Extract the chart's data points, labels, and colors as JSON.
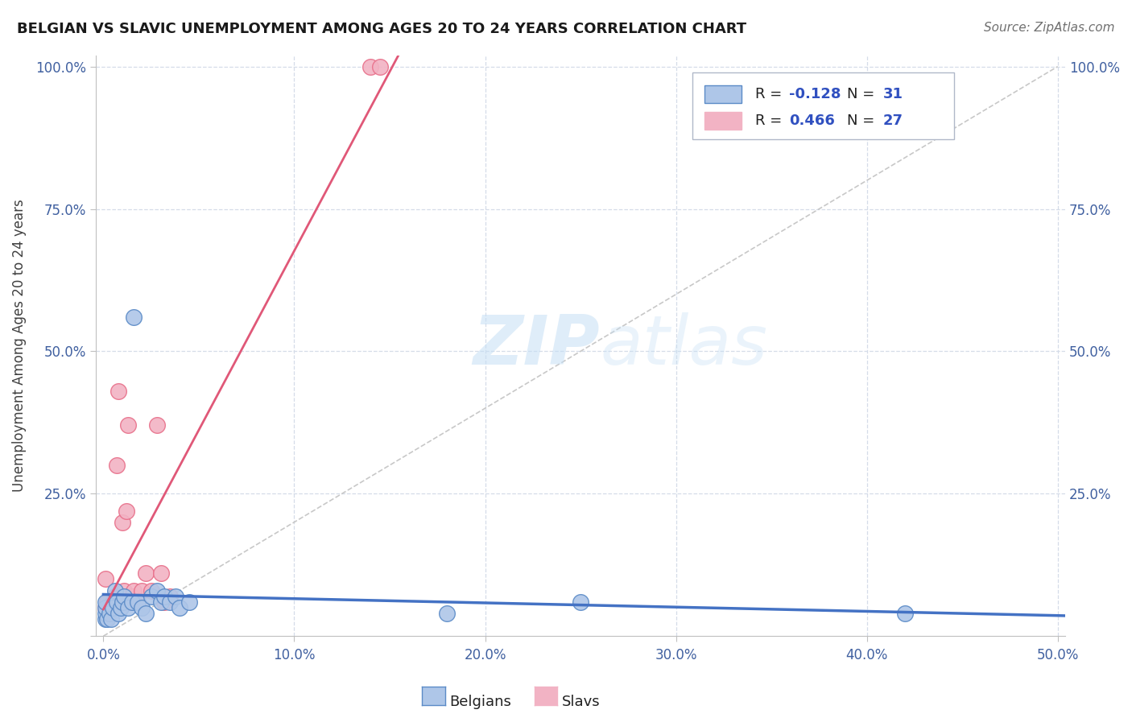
{
  "title": "BELGIAN VS SLAVIC UNEMPLOYMENT AMONG AGES 20 TO 24 YEARS CORRELATION CHART",
  "source": "Source: ZipAtlas.com",
  "ylabel": "Unemployment Among Ages 20 to 24 years",
  "xlim": [
    -0.004,
    0.504
  ],
  "ylim": [
    0.0,
    1.02
  ],
  "xticks": [
    0.0,
    0.1,
    0.2,
    0.3,
    0.4,
    0.5
  ],
  "yticks": [
    0.0,
    0.25,
    0.5,
    0.75,
    1.0
  ],
  "xticklabels": [
    "0.0%",
    "10.0%",
    "20.0%",
    "30.0%",
    "40.0%",
    "50.0%"
  ],
  "yticklabels": [
    "",
    "25.0%",
    "50.0%",
    "75.0%",
    "100.0%"
  ],
  "belgians_x": [
    0.001,
    0.001,
    0.001,
    0.001,
    0.002,
    0.003,
    0.004,
    0.005,
    0.006,
    0.007,
    0.008,
    0.009,
    0.01,
    0.011,
    0.013,
    0.015,
    0.016,
    0.018,
    0.02,
    0.022,
    0.025,
    0.028,
    0.03,
    0.032,
    0.035,
    0.038,
    0.04,
    0.045,
    0.18,
    0.25,
    0.42
  ],
  "belgians_y": [
    0.03,
    0.04,
    0.05,
    0.06,
    0.03,
    0.04,
    0.03,
    0.05,
    0.08,
    0.06,
    0.04,
    0.05,
    0.06,
    0.07,
    0.05,
    0.06,
    0.56,
    0.06,
    0.05,
    0.04,
    0.07,
    0.08,
    0.06,
    0.07,
    0.06,
    0.07,
    0.05,
    0.06,
    0.04,
    0.06,
    0.04
  ],
  "slavs_x": [
    0.001,
    0.001,
    0.002,
    0.003,
    0.004,
    0.005,
    0.006,
    0.007,
    0.008,
    0.009,
    0.01,
    0.011,
    0.012,
    0.013,
    0.014,
    0.015,
    0.016,
    0.018,
    0.02,
    0.022,
    0.025,
    0.028,
    0.03,
    0.032,
    0.035,
    0.14,
    0.145
  ],
  "slavs_y": [
    0.1,
    0.05,
    0.06,
    0.04,
    0.05,
    0.06,
    0.07,
    0.3,
    0.43,
    0.07,
    0.2,
    0.08,
    0.22,
    0.37,
    0.06,
    0.07,
    0.08,
    0.06,
    0.08,
    0.11,
    0.08,
    0.37,
    0.11,
    0.06,
    0.07,
    1.0,
    1.0
  ],
  "belgian_R": -0.128,
  "belgian_N": 31,
  "slav_R": 0.466,
  "slav_N": 27,
  "belgian_color": "#aec6e8",
  "belgian_edge_color": "#5b8bc7",
  "slav_color": "#f2b3c4",
  "slav_edge_color": "#e8708a",
  "belgian_line_color": "#4472c4",
  "slav_line_color": "#e05878",
  "diagonal_color": "#c8c8c8",
  "watermark_color": "#d5e8f5",
  "background_color": "#ffffff",
  "grid_color": "#d5dce8",
  "title_color": "#1a1a1a",
  "source_color": "#707070",
  "tick_color": "#4060a0",
  "legend_R_color": "#3050c0",
  "legend_N_color": "#3050c0"
}
